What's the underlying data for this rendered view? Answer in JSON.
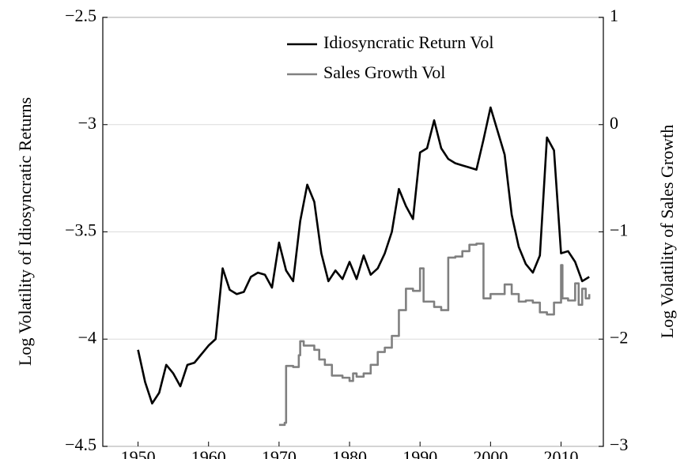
{
  "chart_data": {
    "type": "line",
    "y_label": "Log Volatility of Idiosyncratic Returns",
    "y2_label": "Log Volatility of Sales Growth",
    "xlim": [
      1945,
      2016
    ],
    "xticks": [
      1950,
      1960,
      1970,
      1980,
      1990,
      2000,
      2010
    ],
    "ylim": [
      -4.5,
      -2.5
    ],
    "yticks": [
      {
        "value": -4.5,
        "label": "−4.5"
      },
      {
        "value": -4,
        "label": "−4"
      },
      {
        "value": -3.5,
        "label": "−3.5"
      },
      {
        "value": -3,
        "label": "−3"
      },
      {
        "value": -2.5,
        "label": "−2.5"
      }
    ],
    "y2lim": [
      -3,
      1
    ],
    "y2ticks": [
      {
        "value": -3,
        "label": "−3"
      },
      {
        "value": -2,
        "label": "−2"
      },
      {
        "value": -1,
        "label": "−1"
      },
      0,
      1
    ],
    "grid": true,
    "legend": "upper right",
    "series": [
      {
        "name": "Idiosyncratic Return Vol",
        "color": "#000000",
        "drawstyle": "line",
        "x": [
          1950,
          1951,
          1952,
          1953,
          1954,
          1955,
          1956,
          1957,
          1958,
          1959,
          1960,
          1961,
          1962,
          1963,
          1964,
          1965,
          1966,
          1967,
          1968,
          1969,
          1970,
          1971,
          1972,
          1973,
          1974,
          1975,
          1976,
          1977,
          1978,
          1979,
          1980,
          1981,
          1982,
          1983,
          1984,
          1985,
          1986,
          1987,
          1988,
          1989,
          1990,
          1991,
          1992,
          1993,
          1994,
          1995,
          1996,
          1997,
          1998,
          1999,
          2000,
          2001,
          2002,
          2003,
          2004,
          2005,
          2006,
          2007,
          2008,
          2009,
          2010,
          2011,
          2012,
          2013,
          2014
        ],
        "values": [
          -4.05,
          -4.2,
          -4.3,
          -4.25,
          -4.12,
          -4.16,
          -4.22,
          -4.12,
          -4.11,
          -4.07,
          -4.03,
          -4.0,
          -3.67,
          -3.77,
          -3.79,
          -3.78,
          -3.71,
          -3.69,
          -3.7,
          -3.76,
          -3.55,
          -3.68,
          -3.73,
          -3.45,
          -3.28,
          -3.36,
          -3.6,
          -3.73,
          -3.68,
          -3.72,
          -3.64,
          -3.72,
          -3.61,
          -3.7,
          -3.67,
          -3.6,
          -3.5,
          -3.3,
          -3.38,
          -3.44,
          -3.13,
          -3.11,
          -2.98,
          -3.11,
          -3.16,
          -3.18,
          -3.19,
          -3.2,
          -3.21,
          -3.07,
          -2.92,
          -3.03,
          -3.14,
          -3.42,
          -3.57,
          -3.65,
          -3.69,
          -3.61,
          -3.06,
          -3.12,
          -3.6,
          -3.59,
          -3.64,
          -3.73,
          -3.71
        ]
      },
      {
        "name": "Sales Growth Vol",
        "color": "#808080",
        "axis": "y2",
        "drawstyle": "steps-post",
        "x": [
          1970,
          1970.8,
          1971,
          1972,
          1972.8,
          1973,
          1973.5,
          1974,
          1975,
          1975.7,
          1976.5,
          1977.5,
          1978,
          1979,
          1980,
          1980.5,
          1981,
          1982,
          1983,
          1984,
          1985,
          1986,
          1987,
          1988,
          1989,
          1990,
          1990.5,
          1992,
          1993,
          1994,
          1995,
          1996,
          1997,
          1998,
          1999,
          2000,
          2001,
          2002,
          2003,
          2004,
          2005,
          2006,
          2007,
          2008,
          2009,
          2010,
          2010.2,
          2011,
          2012,
          2012.5,
          2013,
          2013.5,
          2014
        ],
        "values": [
          -2.8,
          -2.78,
          -2.25,
          -2.26,
          -2.15,
          -2.02,
          -2.06,
          -2.06,
          -2.1,
          -2.19,
          -2.24,
          -2.34,
          -2.34,
          -2.36,
          -2.39,
          -2.32,
          -2.35,
          -2.32,
          -2.24,
          -2.12,
          -2.08,
          -1.97,
          -1.73,
          -1.53,
          -1.55,
          -1.34,
          -1.65,
          -1.7,
          -1.73,
          -1.24,
          -1.23,
          -1.18,
          -1.12,
          -1.11,
          -1.62,
          -1.58,
          -1.58,
          -1.49,
          -1.58,
          -1.65,
          -1.64,
          -1.66,
          -1.75,
          -1.77,
          -1.66,
          -1.31,
          -1.62,
          -1.64,
          -1.48,
          -1.68,
          -1.53,
          -1.62,
          -1.58
        ]
      }
    ]
  }
}
